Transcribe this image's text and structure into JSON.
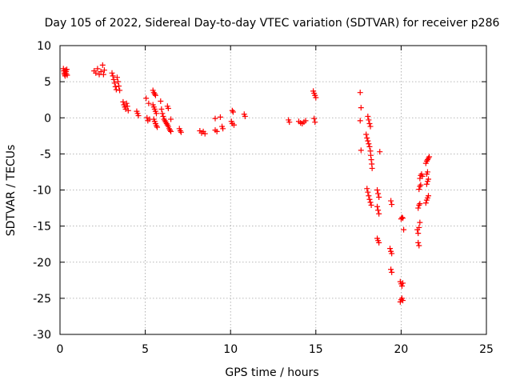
{
  "chart_data": {
    "type": "scatter",
    "title": "Day 105 of 2022, Sidereal Day-to-day VTEC variation (SDTVAR) for receiver p286",
    "xlabel": "GPS time / hours",
    "ylabel": "SDTVAR / TECUs",
    "xlim": [
      0,
      25
    ],
    "ylim": [
      -30,
      10
    ],
    "xticks": [
      0,
      5,
      10,
      15,
      20,
      25
    ],
    "yticks": [
      -30,
      -25,
      -20,
      -15,
      -10,
      -5,
      0,
      5,
      10
    ],
    "grid": true,
    "marker": "plus",
    "color": "#ff0000",
    "series": [
      {
        "name": "SDTVAR",
        "points": [
          [
            0.2,
            6.8
          ],
          [
            0.22,
            6.5
          ],
          [
            0.25,
            6.2
          ],
          [
            0.27,
            6.0
          ],
          [
            0.3,
            5.8
          ],
          [
            0.32,
            6.6
          ],
          [
            0.35,
            6.4
          ],
          [
            0.37,
            6.1
          ],
          [
            0.4,
            6.7
          ],
          [
            0.42,
            5.9
          ],
          [
            2.0,
            6.5
          ],
          [
            2.1,
            6.2
          ],
          [
            2.2,
            6.8
          ],
          [
            2.3,
            6.0
          ],
          [
            2.4,
            6.4
          ],
          [
            2.5,
            7.3
          ],
          [
            2.55,
            6.0
          ],
          [
            2.6,
            6.6
          ],
          [
            3.05,
            6.2
          ],
          [
            3.1,
            5.8
          ],
          [
            3.15,
            5.3
          ],
          [
            3.2,
            4.8
          ],
          [
            3.25,
            4.3
          ],
          [
            3.3,
            3.9
          ],
          [
            3.35,
            5.6
          ],
          [
            3.4,
            5.0
          ],
          [
            3.45,
            4.4
          ],
          [
            3.5,
            3.8
          ],
          [
            3.7,
            2.2
          ],
          [
            3.75,
            1.8
          ],
          [
            3.8,
            1.5
          ],
          [
            3.85,
            1.2
          ],
          [
            3.9,
            2.0
          ],
          [
            3.95,
            1.6
          ],
          [
            4.0,
            1.0
          ],
          [
            4.5,
            0.9
          ],
          [
            4.55,
            0.6
          ],
          [
            4.6,
            0.3
          ],
          [
            5.05,
            2.7
          ],
          [
            5.1,
            0.0
          ],
          [
            5.15,
            -0.4
          ],
          [
            5.2,
            2.0
          ],
          [
            5.25,
            -0.2
          ],
          [
            5.45,
            3.8
          ],
          [
            5.5,
            3.5
          ],
          [
            5.55,
            3.3
          ],
          [
            5.6,
            3.1
          ],
          [
            5.45,
            1.8
          ],
          [
            5.5,
            1.5
          ],
          [
            5.55,
            1.2
          ],
          [
            5.6,
            0.9
          ],
          [
            5.65,
            0.6
          ],
          [
            5.5,
            -0.2
          ],
          [
            5.55,
            -0.5
          ],
          [
            5.6,
            -0.8
          ],
          [
            5.65,
            -1.1
          ],
          [
            5.7,
            -1.3
          ],
          [
            5.9,
            2.3
          ],
          [
            5.95,
            1.2
          ],
          [
            6.0,
            0.6
          ],
          [
            6.05,
            0.2
          ],
          [
            6.1,
            -0.2
          ],
          [
            6.15,
            -0.4
          ],
          [
            6.2,
            -0.6
          ],
          [
            6.3,
            1.6
          ],
          [
            6.35,
            1.3
          ],
          [
            6.25,
            -0.8
          ],
          [
            6.3,
            -1.0
          ],
          [
            6.35,
            -1.2
          ],
          [
            6.4,
            -1.5
          ],
          [
            6.45,
            -1.7
          ],
          [
            6.5,
            -1.9
          ],
          [
            6.5,
            -0.2
          ],
          [
            7.0,
            -1.5
          ],
          [
            7.05,
            -1.8
          ],
          [
            7.1,
            -2.0
          ],
          [
            8.2,
            -1.8
          ],
          [
            8.3,
            -2.1
          ],
          [
            8.4,
            -1.9
          ],
          [
            8.5,
            -2.2
          ],
          [
            9.1,
            -1.7
          ],
          [
            9.2,
            -1.9
          ],
          [
            9.1,
            -0.1
          ],
          [
            9.4,
            0.1
          ],
          [
            9.5,
            -1.2
          ],
          [
            9.55,
            -1.5
          ],
          [
            10.1,
            1.0
          ],
          [
            10.15,
            0.8
          ],
          [
            10.05,
            -0.5
          ],
          [
            10.1,
            -0.8
          ],
          [
            10.2,
            -1.0
          ],
          [
            10.8,
            0.5
          ],
          [
            10.85,
            0.2
          ],
          [
            13.4,
            -0.3
          ],
          [
            13.45,
            -0.6
          ],
          [
            14.0,
            -0.5
          ],
          [
            14.1,
            -0.7
          ],
          [
            14.2,
            -0.8
          ],
          [
            14.3,
            -0.6
          ],
          [
            14.4,
            -0.4
          ],
          [
            14.85,
            3.7
          ],
          [
            14.9,
            3.4
          ],
          [
            14.95,
            3.1
          ],
          [
            15.0,
            2.8
          ],
          [
            14.9,
            -0.1
          ],
          [
            14.95,
            -0.6
          ],
          [
            17.6,
            3.5
          ],
          [
            17.65,
            1.4
          ],
          [
            17.6,
            -0.4
          ],
          [
            17.65,
            -4.5
          ],
          [
            17.95,
            -2.3
          ],
          [
            18.0,
            -2.8
          ],
          [
            18.05,
            -3.2
          ],
          [
            18.1,
            -3.6
          ],
          [
            18.15,
            -4.0
          ],
          [
            18.2,
            -4.6
          ],
          [
            18.22,
            -5.2
          ],
          [
            18.25,
            -5.8
          ],
          [
            18.28,
            -6.4
          ],
          [
            18.3,
            -7.0
          ],
          [
            18.05,
            0.2
          ],
          [
            18.1,
            -0.3
          ],
          [
            18.15,
            -0.8
          ],
          [
            18.2,
            -1.2
          ],
          [
            18.0,
            -9.8
          ],
          [
            18.05,
            -10.3
          ],
          [
            18.1,
            -10.8
          ],
          [
            18.15,
            -11.3
          ],
          [
            18.2,
            -11.7
          ],
          [
            18.25,
            -12.1
          ],
          [
            18.6,
            -10.0
          ],
          [
            18.65,
            -10.5
          ],
          [
            18.7,
            -11.0
          ],
          [
            18.6,
            -12.3
          ],
          [
            18.65,
            -12.8
          ],
          [
            18.7,
            -13.3
          ],
          [
            18.75,
            -4.7
          ],
          [
            18.6,
            -16.7
          ],
          [
            18.65,
            -17.0
          ],
          [
            18.7,
            -17.3
          ],
          [
            19.4,
            -11.5
          ],
          [
            19.45,
            -12.0
          ],
          [
            19.35,
            -18.1
          ],
          [
            19.4,
            -18.5
          ],
          [
            19.45,
            -18.8
          ],
          [
            19.4,
            -21.0
          ],
          [
            19.45,
            -21.4
          ],
          [
            19.95,
            -22.7
          ],
          [
            20.0,
            -23.0
          ],
          [
            20.05,
            -23.3
          ],
          [
            20.1,
            -22.9
          ],
          [
            19.95,
            -25.5
          ],
          [
            20.0,
            -25.2
          ],
          [
            20.05,
            -25.0
          ],
          [
            20.1,
            -25.3
          ],
          [
            20.0,
            -14.0
          ],
          [
            20.05,
            -13.8
          ],
          [
            20.1,
            -13.9
          ],
          [
            20.15,
            -15.5
          ],
          [
            20.95,
            -15.5
          ],
          [
            21.0,
            -16.0
          ],
          [
            21.05,
            -15.2
          ],
          [
            21.0,
            -17.3
          ],
          [
            21.05,
            -17.7
          ],
          [
            21.1,
            -14.5
          ],
          [
            21.0,
            -12.5
          ],
          [
            21.05,
            -12.1
          ],
          [
            21.1,
            -11.9
          ],
          [
            21.05,
            -9.9
          ],
          [
            21.1,
            -9.5
          ],
          [
            21.15,
            -9.3
          ],
          [
            21.1,
            -8.4
          ],
          [
            21.15,
            -8.0
          ],
          [
            21.2,
            -7.8
          ],
          [
            21.25,
            -8.1
          ],
          [
            21.45,
            -11.8
          ],
          [
            21.5,
            -11.4
          ],
          [
            21.55,
            -11.1
          ],
          [
            21.6,
            -10.8
          ],
          [
            21.5,
            -9.2
          ],
          [
            21.55,
            -8.8
          ],
          [
            21.6,
            -8.5
          ],
          [
            21.5,
            -7.8
          ],
          [
            21.55,
            -7.5
          ],
          [
            21.45,
            -6.3
          ],
          [
            21.5,
            -6.0
          ],
          [
            21.55,
            -5.8
          ],
          [
            21.6,
            -5.6
          ],
          [
            21.65,
            -5.4
          ]
        ]
      }
    ]
  }
}
